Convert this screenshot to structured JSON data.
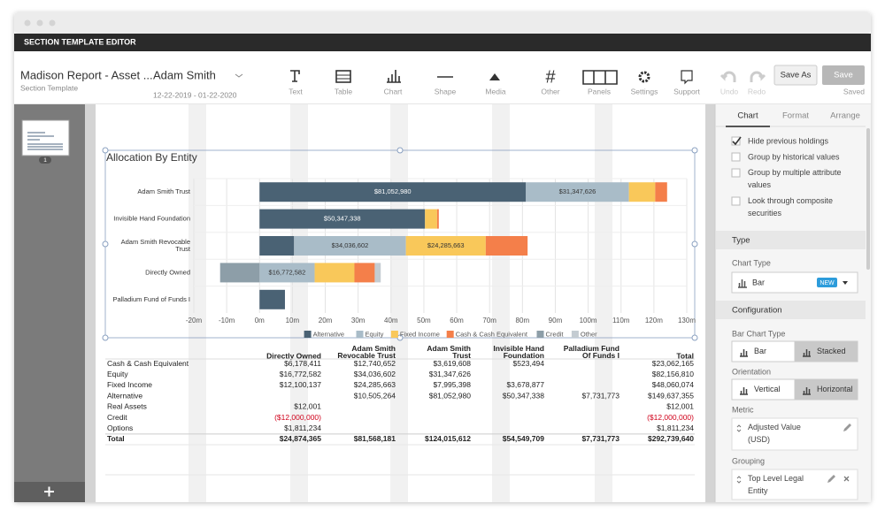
{
  "header": {
    "title": "SECTION TEMPLATE EDITOR"
  },
  "toolbar": {
    "report_name": "Madison Report - Asset ...",
    "report_type": "Section Template",
    "entity": "Adam Smith",
    "date_range": "12-22-2019 - 01-22-2020",
    "tools": [
      "Text",
      "Table",
      "Chart",
      "Shape",
      "Media",
      "Other",
      "Panels",
      "Settings",
      "Support",
      "Undo",
      "Redo"
    ],
    "buttons": [
      "Save As",
      "Save"
    ],
    "status": "Saved"
  },
  "pages": {
    "page_number": "1"
  },
  "chart_data": {
    "type": "bar",
    "orientation": "horizontal",
    "stacked": true,
    "title": "Allocation By Entity",
    "categories": [
      "Adam Smith Trust",
      "Invisible Hand Foundation",
      "Adam Smith Revocable Trust",
      "Directly Owned",
      "Palladium Fund of Funds I"
    ],
    "series": [
      {
        "name": "Alternative",
        "color": "#4a6274",
        "values": [
          81052980,
          50347338,
          10505264,
          null,
          7731773
        ],
        "value_labels": [
          "$81,052,980",
          "$50,347,338",
          null,
          null,
          null
        ]
      },
      {
        "name": "Equity",
        "color": "#a9bcc8",
        "values": [
          31347626,
          null,
          34036602,
          16772582,
          null
        ],
        "value_labels": [
          "$31,347,626",
          null,
          "$34,036,602",
          "$16,772,582",
          null
        ]
      },
      {
        "name": "Fixed Income",
        "color": "#f9c85a",
        "values": [
          7995398,
          3678877,
          24285663,
          12100137,
          null
        ],
        "value_labels": [
          null,
          null,
          "$24,285,663",
          null,
          null
        ]
      },
      {
        "name": "Cash & Cash Equivalent",
        "color": "#f47f4a",
        "values": [
          3619608,
          523494,
          12740652,
          6178411,
          null
        ]
      },
      {
        "name": "Credit",
        "color": "#8d9ea8",
        "values": [
          null,
          null,
          null,
          -12000000,
          null
        ]
      },
      {
        "name": "Other",
        "color": "#c4ccd2",
        "values": [
          null,
          null,
          null,
          1823235,
          null
        ]
      }
    ],
    "xlim": [
      -20000000,
      130000000
    ],
    "xticks": [
      {
        "value": -20000000,
        "label": "-20m"
      },
      {
        "value": -10000000,
        "label": "-10m"
      },
      {
        "value": 0,
        "label": "0m"
      },
      {
        "value": 10000000,
        "label": "10m"
      },
      {
        "value": 20000000,
        "label": "20m"
      },
      {
        "value": 30000000,
        "label": "30m"
      },
      {
        "value": 40000000,
        "label": "40m"
      },
      {
        "value": 50000000,
        "label": "50m"
      },
      {
        "value": 60000000,
        "label": "60m"
      },
      {
        "value": 70000000,
        "label": "70m"
      },
      {
        "value": 80000000,
        "label": "80m"
      },
      {
        "value": 90000000,
        "label": "90m"
      },
      {
        "value": 100000000,
        "label": "100m"
      },
      {
        "value": 110000000,
        "label": "110m"
      },
      {
        "value": 120000000,
        "label": "120m"
      },
      {
        "value": 130000000,
        "label": "130m"
      }
    ],
    "grid": true,
    "legend": "bottom"
  },
  "table": {
    "header": [
      "Directly Owned",
      "Adam Smith Revocable Trust",
      "Adam Smith Trust",
      "Invisible Hand Foundation",
      "Palladium Fund Of Funds I",
      "Total"
    ],
    "rows": [
      [
        "Cash & Cash Equivalent",
        "$6,178,411",
        "$12,740,652",
        "$3,619,608",
        "$523,494",
        null,
        "$23,062,165"
      ],
      [
        "Equity",
        "$16,772,582",
        "$34,036,602",
        "$31,347,626",
        null,
        null,
        "$82,156,810"
      ],
      [
        "Fixed Income",
        "$12,100,137",
        "$24,285,663",
        "$7,995,398",
        "$3,678,877",
        null,
        "$48,060,074"
      ],
      [
        "Alternative",
        null,
        "$10,505,264",
        "$81,052,980",
        "$50,347,338",
        "$7,731,773",
        "$149,637,355"
      ],
      [
        "Real Assets",
        "$12,001",
        null,
        null,
        null,
        null,
        "$12,001"
      ],
      [
        "Credit",
        "($12,000,000)",
        null,
        null,
        null,
        null,
        "($12,000,000)"
      ],
      [
        "Options",
        "$1,811,234",
        null,
        null,
        null,
        null,
        "$1,811,234"
      ],
      [
        "Total",
        "$24,874,365",
        "$81,568,181",
        "$124,015,612",
        "$54,549,709",
        "$7,731,773",
        "$292,739,640"
      ]
    ]
  },
  "panel": {
    "tabs": [
      "Chart",
      "Format",
      "Arrange"
    ],
    "active_tab": 0,
    "options": [
      {
        "label": "Hide previous holdings",
        "checked": true
      },
      {
        "label": "Group by historical values",
        "checked": false
      },
      {
        "label": "Group by multiple attribute values",
        "checked": false
      },
      {
        "label": "Look through composite securities",
        "checked": false
      }
    ],
    "type_section": {
      "title": "Type",
      "chart_type_label": "Chart Type",
      "chart_type": "Bar",
      "badge": "NEW"
    },
    "configuration": {
      "title": "Configuration",
      "bar_chart_type_label": "Bar Chart Type",
      "bar_chart_types": [
        "Bar",
        "Stacked"
      ],
      "bar_chart_type_selected": 1,
      "orientation_label": "Orientation",
      "orientations": [
        "Vertical",
        "Horizontal"
      ],
      "orientation_selected": 1,
      "metric_label": "Metric",
      "metric": "Adjusted Value (USD)",
      "grouping_label": "Grouping",
      "grouping": "Top Level Legal Entity"
    }
  }
}
